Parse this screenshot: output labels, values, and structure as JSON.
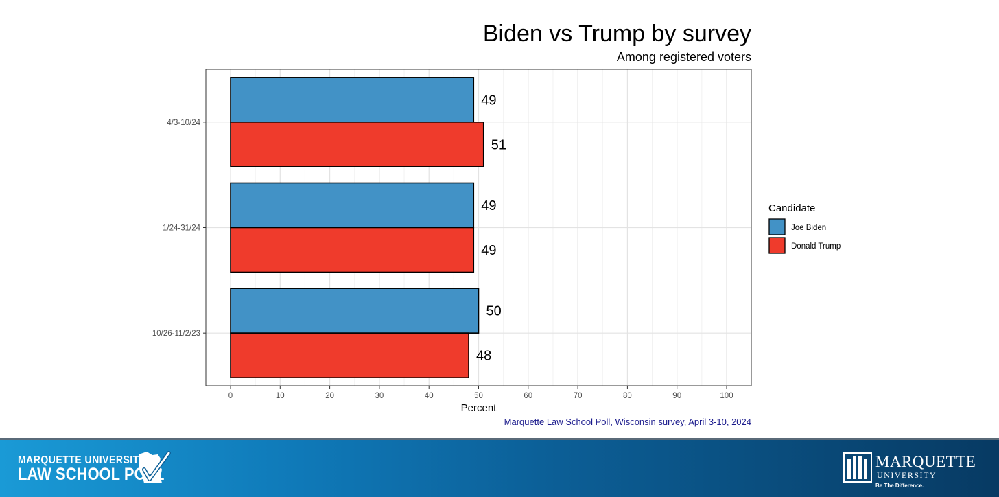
{
  "chart_data": {
    "type": "bar",
    "orientation": "horizontal",
    "title": "Biden vs Trump by survey",
    "subtitle": "Among registered voters",
    "xlabel": "Percent",
    "ylabel": "",
    "categories": [
      "4/3-10/24",
      "1/24-31/24",
      "10/26-11/2/23"
    ],
    "series": [
      {
        "name": "Joe Biden",
        "color": "#4292c6",
        "values": [
          49,
          49,
          50
        ]
      },
      {
        "name": "Donald Trump",
        "color": "#ef3b2c",
        "values": [
          51,
          49,
          48
        ]
      }
    ],
    "xlim": [
      0,
      100
    ],
    "xticks": [
      0,
      10,
      20,
      30,
      40,
      50,
      60,
      70,
      80,
      90,
      100
    ],
    "grid": true,
    "legend": {
      "title": "Candidate",
      "position": "right"
    },
    "caption": "Marquette Law School Poll, Wisconsin survey, April 3-10, 2024"
  },
  "footer": {
    "left_logo_line1": "MARQUETTE UNIVERSITY",
    "left_logo_line2": "LAW SCHOOL POLL",
    "right_logo_name": "MARQUETTE",
    "right_logo_sub": "UNIVERSITY",
    "right_logo_tagline": "Be The Difference."
  }
}
